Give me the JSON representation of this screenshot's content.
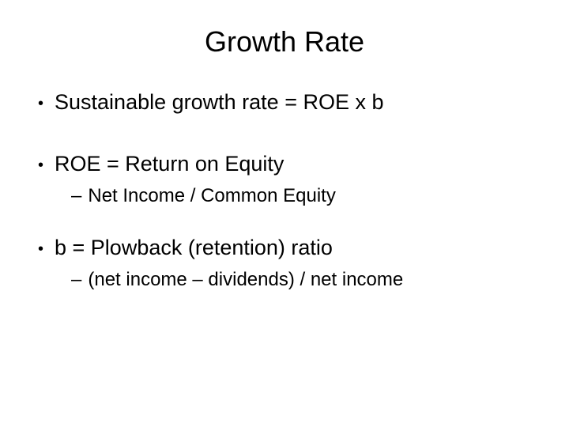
{
  "title": "Growth Rate",
  "items": [
    {
      "text": "Sustainable growth rate = ROE x b",
      "sub": null
    },
    {
      "text": "ROE = Return on Equity",
      "sub": "Net Income / Common Equity"
    },
    {
      "text": "b = Plowback (retention) ratio",
      "sub": "(net income – dividends) / net income"
    }
  ],
  "colors": {
    "background": "#ffffff",
    "text": "#000000"
  },
  "typography": {
    "title_fontsize": 36,
    "bullet_fontsize": 27,
    "sub_fontsize": 24,
    "font_family": "Arial"
  }
}
